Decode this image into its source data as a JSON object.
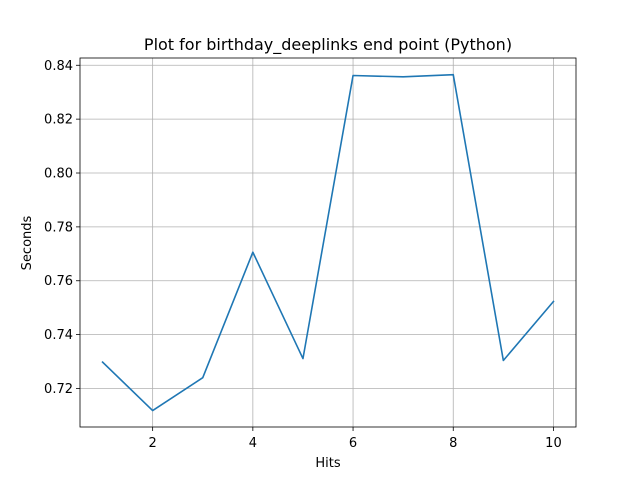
{
  "chart_data": {
    "type": "line",
    "title": "Plot for birthday_deeplinks end point (Python)",
    "xlabel": "Hits",
    "ylabel": "Seconds",
    "x": [
      1,
      2,
      3,
      4,
      5,
      6,
      7,
      8,
      9,
      10
    ],
    "series": [
      {
        "values": [
          0.7298,
          0.7118,
          0.724,
          0.7706,
          0.7311,
          0.8362,
          0.8357,
          0.8365,
          0.7304,
          0.7523
        ],
        "color": "#1f77b4"
      }
    ],
    "xlim": [
      0.55,
      10.45
    ],
    "ylim": [
      0.7057,
      0.8427
    ],
    "x_ticks": [
      2,
      4,
      6,
      8,
      10
    ],
    "x_tick_labels": [
      "2",
      "4",
      "6",
      "8",
      "10"
    ],
    "y_ticks": [
      0.72,
      0.74,
      0.76,
      0.78,
      0.8,
      0.82,
      0.84
    ],
    "y_tick_labels": [
      "0.72",
      "0.74",
      "0.76",
      "0.78",
      "0.80",
      "0.82",
      "0.84"
    ],
    "grid": true,
    "legend": "none"
  }
}
